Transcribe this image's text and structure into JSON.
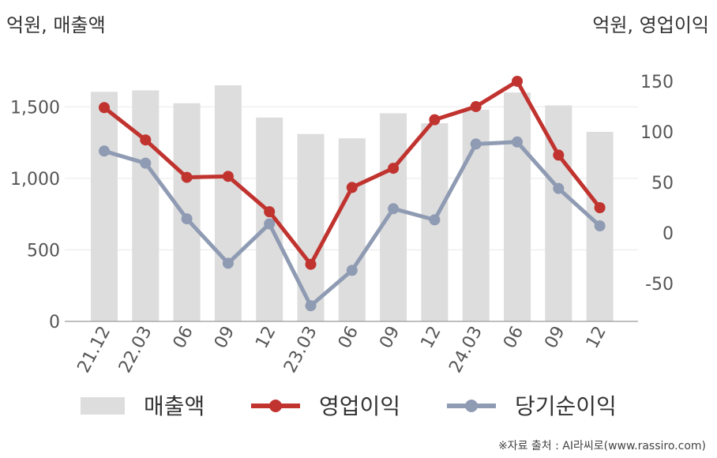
{
  "units": {
    "left": "억원, 매출액",
    "right": "억원, 영업이익"
  },
  "source": "※자료 출처 : AI라씨로(www.rassiro.com)",
  "colors": {
    "revenue": "#dddddd",
    "operating_profit": "#c0332f",
    "net_income": "#8f9bb3"
  },
  "chart_data": {
    "type": "bar",
    "categories": [
      "21.12",
      "22.03",
      "06",
      "09",
      "12",
      "23.03",
      "06",
      "09",
      "12",
      "24.03",
      "06",
      "09",
      "12"
    ],
    "series": [
      {
        "name": "매출액",
        "type": "bar",
        "axis": "left",
        "values": [
          1605,
          1615,
          1525,
          1650,
          1425,
          1310,
          1280,
          1455,
          1385,
          1480,
          1600,
          1510,
          1325
        ]
      },
      {
        "name": "영업이익",
        "type": "line",
        "axis": "right",
        "values": [
          124,
          92,
          55,
          56,
          21,
          -31,
          45,
          64,
          112,
          125,
          150,
          77,
          25
        ]
      },
      {
        "name": "당기순이익",
        "type": "line",
        "axis": "right",
        "values": [
          81,
          69,
          14,
          -30,
          9,
          -72,
          -37,
          24,
          13,
          88,
          90,
          44,
          7
        ]
      }
    ],
    "y_left": {
      "ticks": [
        "0",
        "500",
        "1,000",
        "1,500"
      ],
      "values": [
        0,
        500,
        1000,
        1500
      ],
      "range": [
        0,
        1750
      ]
    },
    "y_right": {
      "ticks": [
        "-50",
        "0",
        "50",
        "100",
        "150"
      ],
      "values": [
        -50,
        0,
        50,
        100,
        150
      ],
      "range": [
        -82,
        157
      ]
    },
    "legend": {
      "position": "bottom",
      "labels": [
        "매출액",
        "영업이익",
        "당기순이익"
      ]
    },
    "grid": true
  }
}
